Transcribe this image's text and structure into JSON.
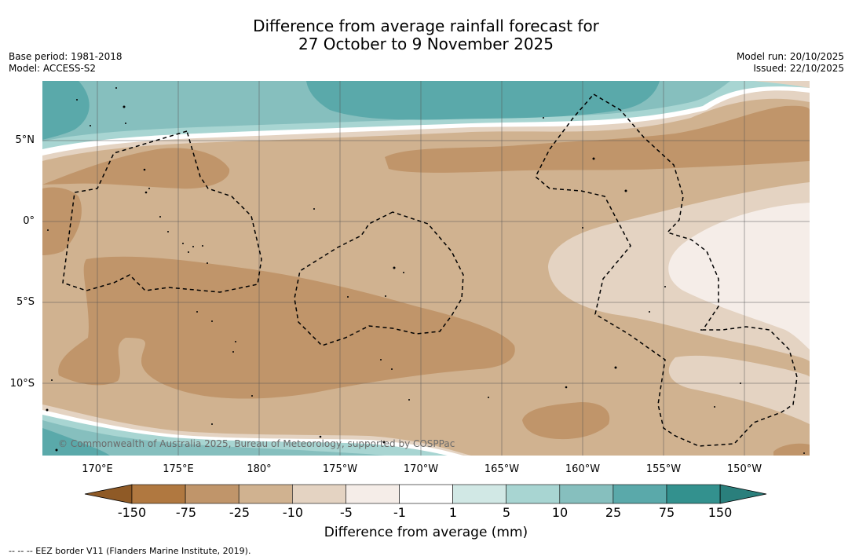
{
  "title": {
    "line1": "Difference from average rainfall forecast for",
    "line2": "27 October to 9 November 2025"
  },
  "meta": {
    "base_period": "Base period: 1981-2018",
    "model": "Model: ACCESS-S2",
    "model_run": "Model run: 20/10/2025",
    "issued": "Issued: 22/10/2025"
  },
  "map": {
    "lat_labels": [
      "5°N",
      "0°",
      "5°S",
      "10°S"
    ],
    "lon_labels": [
      "170°E",
      "175°E",
      "180°",
      "175°W",
      "170°W",
      "165°W",
      "160°W",
      "155°W",
      "150°W"
    ],
    "copyright": "© Commonwealth of Australia 2025, Bureau of Meteorology, supported by COSPPac"
  },
  "colorbar": {
    "labels": [
      "-150",
      "-75",
      "-25",
      "-10",
      "-5",
      "-1",
      "1",
      "5",
      "10",
      "25",
      "75",
      "150"
    ],
    "colors": [
      "#8f5a26",
      "#b07840",
      "#c0956a",
      "#d0b290",
      "#e4d3c2",
      "#f5ede8",
      "#ffffff",
      "#d1e8e5",
      "#a8d5d2",
      "#86bfbe",
      "#5aa9aa",
      "#33918e",
      "#2a7f7c"
    ],
    "title": "Difference from average (mm)"
  },
  "footnote": "--  --  -- EEZ border V11 (Flanders Marine Institute, 2019)."
}
